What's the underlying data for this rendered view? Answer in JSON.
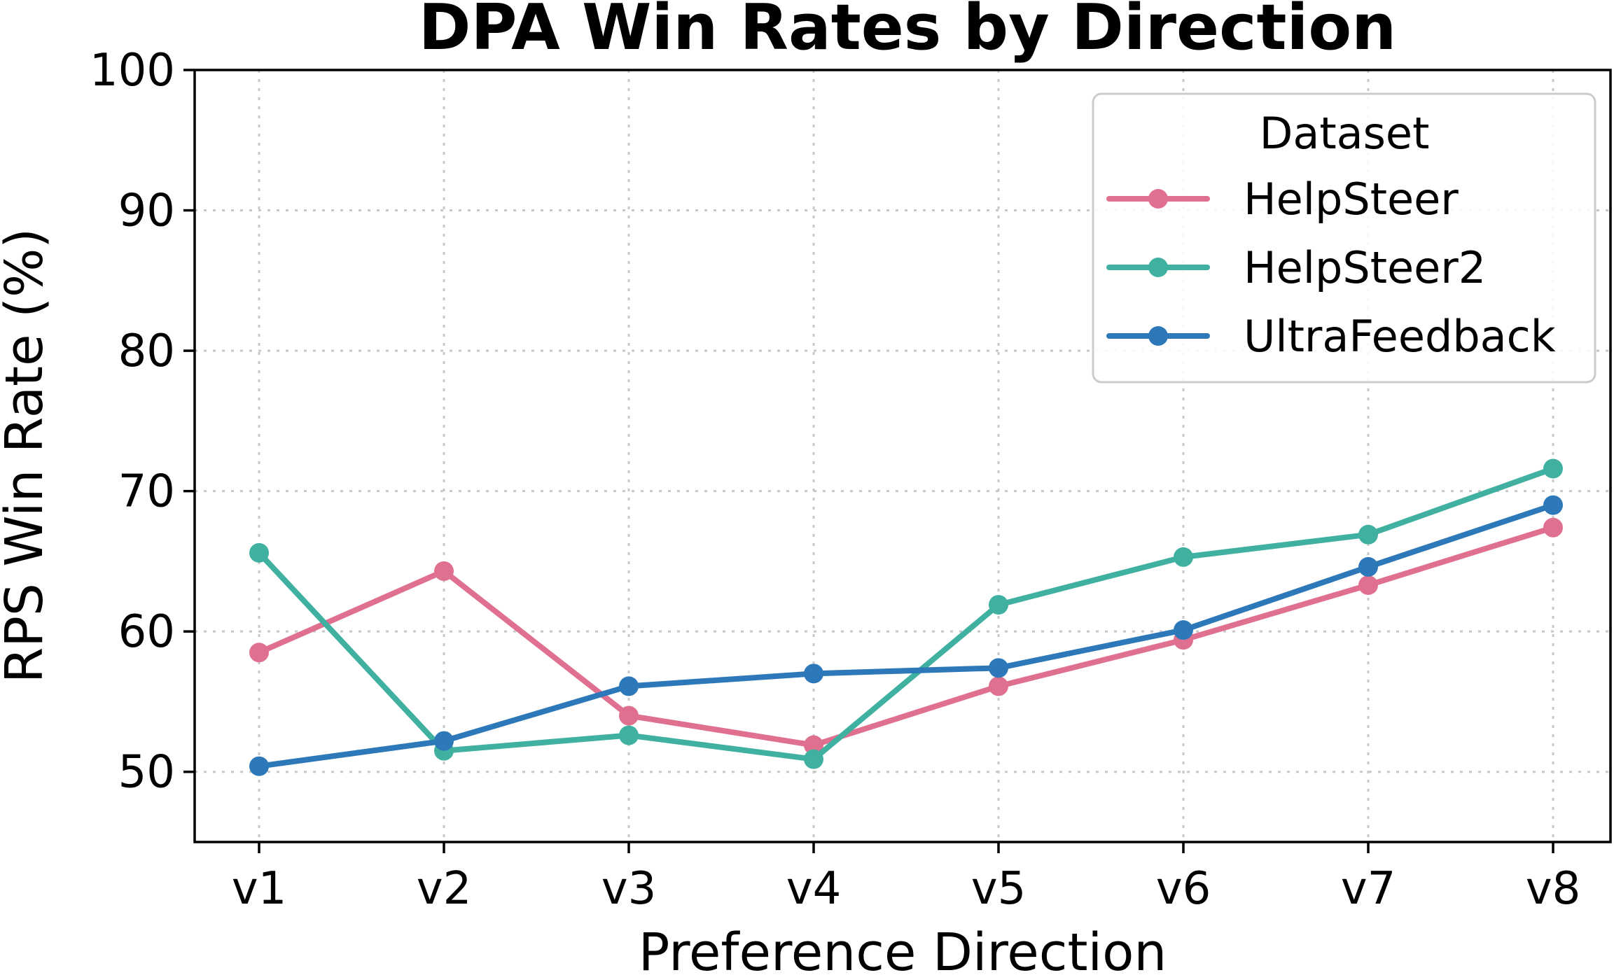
{
  "chart_data": {
    "type": "line",
    "title": "DPA Win Rates by Direction",
    "xlabel": "Preference Direction",
    "ylabel": "RPS Win Rate (%)",
    "categories": [
      "v1",
      "v2",
      "v3",
      "v4",
      "v5",
      "v6",
      "v7",
      "v8"
    ],
    "ylim": [
      45,
      100
    ],
    "yticks": [
      50,
      60,
      70,
      80,
      90,
      100
    ],
    "ytick_labels": [
      "50",
      "60",
      "70",
      "80",
      "90",
      "100"
    ],
    "grid": true,
    "legend": {
      "title": "Dataset",
      "placement": "top-right"
    },
    "series": [
      {
        "name": "HelpSteer",
        "color": "#E07090",
        "values": [
          58.5,
          64.3,
          54.0,
          51.9,
          56.1,
          59.4,
          63.3,
          67.4
        ]
      },
      {
        "name": "HelpSteer2",
        "color": "#40B0A0",
        "values": [
          65.6,
          51.5,
          52.6,
          50.9,
          61.9,
          65.3,
          66.9,
          71.6
        ]
      },
      {
        "name": "UltraFeedback",
        "color": "#2C78B8",
        "values": [
          50.4,
          52.2,
          56.1,
          57.0,
          57.4,
          60.1,
          64.6,
          69.0
        ]
      }
    ]
  }
}
